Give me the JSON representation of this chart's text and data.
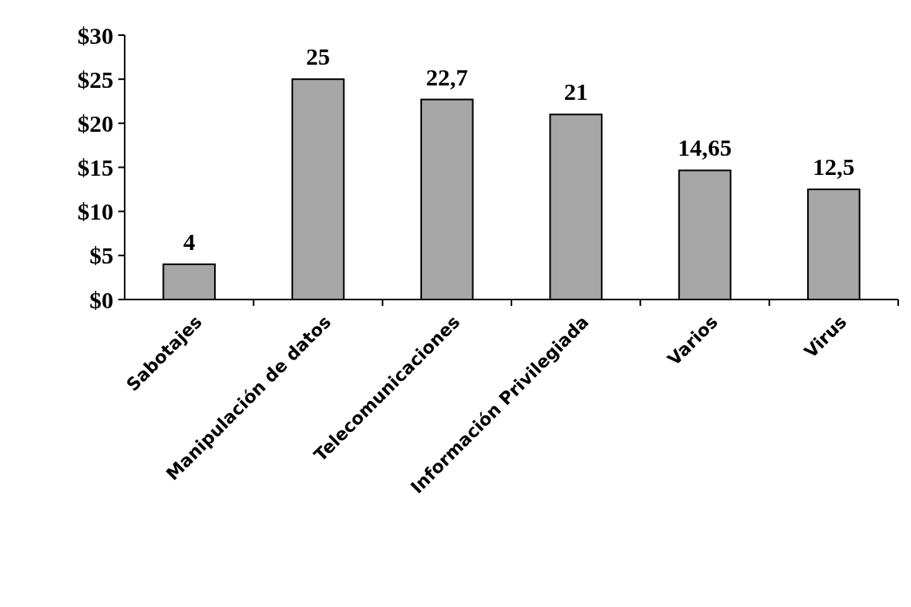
{
  "chart_data": {
    "type": "bar",
    "categories": [
      "Sabotajes",
      "Manipulación de datos",
      "Telecomunicaciones",
      "Información Privilegiada",
      "Varios",
      "Virus"
    ],
    "values": [
      4,
      25,
      22.7,
      21,
      14.65,
      12.5
    ],
    "value_labels": [
      "4",
      "25",
      "22,7",
      "21",
      "14,65",
      "12,5"
    ],
    "color": "#a6a6a6",
    "ylim": [
      0,
      30
    ],
    "yticks": [
      {
        "value": 0,
        "label": "$0"
      },
      {
        "value": 5,
        "label": "$5"
      },
      {
        "value": 10,
        "label": "$10"
      },
      {
        "value": 15,
        "label": "$15"
      },
      {
        "value": 20,
        "label": "$20"
      },
      {
        "value": 25,
        "label": "$25"
      },
      {
        "value": 30,
        "label": "$30"
      }
    ],
    "grid": false
  }
}
